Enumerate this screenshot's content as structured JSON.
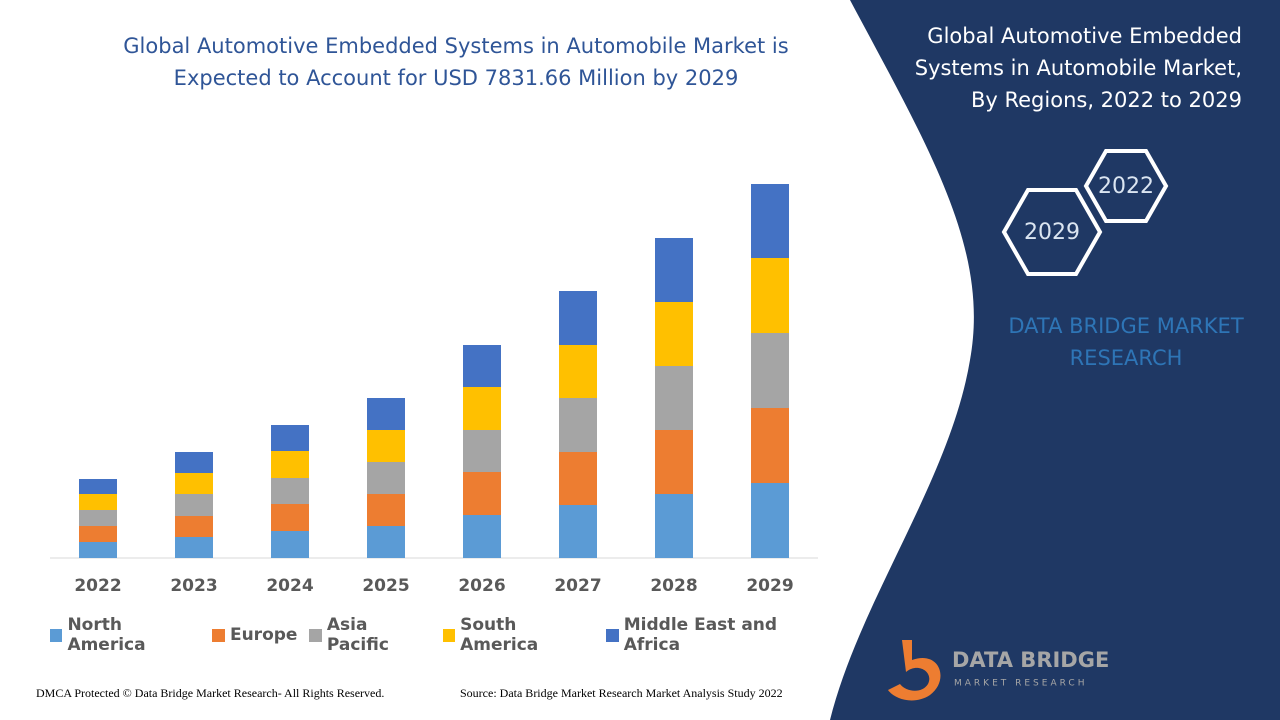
{
  "chart_data": {
    "type": "stacked_bar",
    "title": "Global Automotive Embedded Systems in Automobile Market is Expected to Account for USD 7831.66 Million by 2029",
    "categories": [
      "2022",
      "2023",
      "2024",
      "2025",
      "2026",
      "2027",
      "2028",
      "2029"
    ],
    "series": [
      {
        "name": "North America",
        "color": "#5b9bd5",
        "values": [
          16,
          21,
          27,
          32,
          43,
          53,
          64,
          75
        ]
      },
      {
        "name": "Europe",
        "color": "#ed7d31",
        "values": [
          16,
          21,
          27,
          32,
          43,
          53,
          64,
          75
        ]
      },
      {
        "name": "Asia Pacific",
        "color": "#a5a5a5",
        "values": [
          16,
          22,
          26,
          32,
          42,
          54,
          64,
          75
        ]
      },
      {
        "name": "South America",
        "color": "#ffc000",
        "values": [
          16,
          21,
          27,
          32,
          43,
          53,
          64,
          75
        ]
      },
      {
        "name": "Middle East and Africa",
        "color": "#4472c4",
        "values": [
          15,
          21,
          26,
          32,
          42,
          54,
          64,
          74
        ]
      }
    ],
    "ylim": [
      0,
      400
    ],
    "grid": false,
    "legend": "bottom"
  },
  "side_panel": {
    "title": "Global Automotive Embedded Systems in Automobile Market, By Regions, 2022 to 2029",
    "hex_labels": [
      "2022",
      "2029"
    ],
    "brand": "DATA BRIDGE MARKET RESEARCH"
  },
  "logo": {
    "name": "DATA BRIDGE",
    "tagline": "MARKET RESEARCH"
  },
  "footer": {
    "rights": "DMCA Protected © Data Bridge Market Research- All Rights Reserved.",
    "source": "Source: Data Bridge Market Research Market Analysis Study 2022"
  }
}
